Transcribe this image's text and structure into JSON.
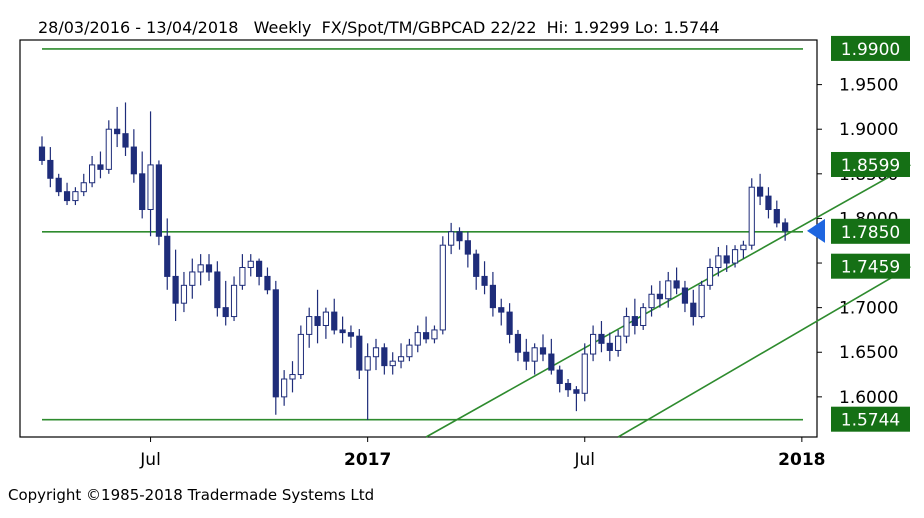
{
  "header": {
    "text": "28/03/2016 - 13/04/2018   Weekly  FX/Spot/TM/GBPCAD 22/22  Hi: 1.9299 Lo: 1.5744"
  },
  "copyright": "Copyright ©1985-2018 Tradermade Systems Ltd",
  "colors": {
    "candle": "#1f2d7a",
    "line": "#2e8b2e",
    "badge": "#157015",
    "marker": "#1e66e0",
    "frame": "#000000"
  },
  "chart_data": {
    "type": "candlestick",
    "symbol": "FX/Spot/TM/GBPCAD",
    "period": "Weekly",
    "date_range": [
      "28/03/2016",
      "13/04/2018"
    ],
    "high": 1.9299,
    "low": 1.5744,
    "ylim": [
      1.555,
      2.0
    ],
    "y_ticks": [
      "1.9500",
      "1.9000",
      "1.8500",
      "1.8000",
      "1.7500",
      "1.7000",
      "1.6500",
      "1.6000"
    ],
    "x_ticks": [
      {
        "label": "Jul",
        "week": 13,
        "bold": false
      },
      {
        "label": "2017",
        "week": 39,
        "bold": true
      },
      {
        "label": "Jul",
        "week": 65,
        "bold": false
      },
      {
        "label": "2018",
        "week": 91,
        "bold": true
      }
    ],
    "horizontal_levels": [
      {
        "label": "1.9900",
        "value": 1.99
      },
      {
        "label": "1.7850",
        "value": 1.785
      },
      {
        "label": "1.5744",
        "value": 1.5744
      }
    ],
    "channel_lines": [
      {
        "label": "1.8599",
        "start": {
          "week": 46,
          "value": 1.555
        },
        "end": {
          "week": 104,
          "value": 1.8599
        }
      },
      {
        "label": "1.7459",
        "start": {
          "week": 69,
          "value": 1.555
        },
        "end": {
          "week": 104,
          "value": 1.7459
        }
      }
    ],
    "last_price": 1.7861,
    "candles_ohlc": [
      [
        1.88,
        1.892,
        1.86,
        1.865
      ],
      [
        1.865,
        1.88,
        1.835,
        1.845
      ],
      [
        1.845,
        1.85,
        1.825,
        1.83
      ],
      [
        1.83,
        1.84,
        1.815,
        1.82
      ],
      [
        1.82,
        1.835,
        1.815,
        1.83
      ],
      [
        1.83,
        1.85,
        1.825,
        1.84
      ],
      [
        1.84,
        1.87,
        1.835,
        1.86
      ],
      [
        1.86,
        1.875,
        1.845,
        1.855
      ],
      [
        1.855,
        1.91,
        1.85,
        1.9
      ],
      [
        1.9,
        1.925,
        1.88,
        1.895
      ],
      [
        1.895,
        1.93,
        1.87,
        1.88
      ],
      [
        1.88,
        1.9,
        1.84,
        1.85
      ],
      [
        1.85,
        1.875,
        1.8,
        1.81
      ],
      [
        1.81,
        1.92,
        1.78,
        1.86
      ],
      [
        1.86,
        1.865,
        1.77,
        1.78
      ],
      [
        1.78,
        1.8,
        1.72,
        1.735
      ],
      [
        1.735,
        1.765,
        1.685,
        1.705
      ],
      [
        1.705,
        1.74,
        1.695,
        1.725
      ],
      [
        1.725,
        1.755,
        1.71,
        1.74
      ],
      [
        1.74,
        1.76,
        1.725,
        1.748
      ],
      [
        1.748,
        1.76,
        1.73,
        1.74
      ],
      [
        1.74,
        1.752,
        1.69,
        1.7
      ],
      [
        1.7,
        1.73,
        1.68,
        1.69
      ],
      [
        1.69,
        1.735,
        1.685,
        1.725
      ],
      [
        1.725,
        1.76,
        1.72,
        1.745
      ],
      [
        1.745,
        1.76,
        1.735,
        1.752
      ],
      [
        1.752,
        1.755,
        1.725,
        1.735
      ],
      [
        1.735,
        1.745,
        1.715,
        1.72
      ],
      [
        1.72,
        1.73,
        1.58,
        1.6
      ],
      [
        1.6,
        1.63,
        1.59,
        1.62
      ],
      [
        1.62,
        1.64,
        1.605,
        1.625
      ],
      [
        1.625,
        1.68,
        1.62,
        1.67
      ],
      [
        1.67,
        1.7,
        1.655,
        1.69
      ],
      [
        1.69,
        1.72,
        1.66,
        1.68
      ],
      [
        1.68,
        1.7,
        1.665,
        1.695
      ],
      [
        1.695,
        1.71,
        1.67,
        1.675
      ],
      [
        1.675,
        1.69,
        1.66,
        1.672
      ],
      [
        1.672,
        1.68,
        1.655,
        1.668
      ],
      [
        1.668,
        1.676,
        1.62,
        1.63
      ],
      [
        1.63,
        1.66,
        1.574,
        1.645
      ],
      [
        1.645,
        1.665,
        1.63,
        1.655
      ],
      [
        1.655,
        1.66,
        1.625,
        1.635
      ],
      [
        1.635,
        1.65,
        1.625,
        1.64
      ],
      [
        1.64,
        1.66,
        1.632,
        1.645
      ],
      [
        1.645,
        1.665,
        1.64,
        1.658
      ],
      [
        1.658,
        1.68,
        1.65,
        1.672
      ],
      [
        1.672,
        1.69,
        1.66,
        1.665
      ],
      [
        1.665,
        1.68,
        1.66,
        1.675
      ],
      [
        1.675,
        1.78,
        1.67,
        1.77
      ],
      [
        1.77,
        1.795,
        1.76,
        1.785
      ],
      [
        1.785,
        1.79,
        1.765,
        1.775
      ],
      [
        1.775,
        1.785,
        1.745,
        1.76
      ],
      [
        1.76,
        1.765,
        1.72,
        1.735
      ],
      [
        1.735,
        1.752,
        1.715,
        1.725
      ],
      [
        1.725,
        1.74,
        1.69,
        1.7
      ],
      [
        1.7,
        1.71,
        1.68,
        1.695
      ],
      [
        1.695,
        1.705,
        1.66,
        1.67
      ],
      [
        1.67,
        1.675,
        1.64,
        1.65
      ],
      [
        1.65,
        1.665,
        1.63,
        1.64
      ],
      [
        1.64,
        1.66,
        1.625,
        1.655
      ],
      [
        1.655,
        1.67,
        1.64,
        1.648
      ],
      [
        1.648,
        1.665,
        1.625,
        1.63
      ],
      [
        1.63,
        1.635,
        1.605,
        1.615
      ],
      [
        1.615,
        1.62,
        1.6,
        1.608
      ],
      [
        1.608,
        1.612,
        1.584,
        1.604
      ],
      [
        1.604,
        1.66,
        1.595,
        1.648
      ],
      [
        1.648,
        1.68,
        1.64,
        1.67
      ],
      [
        1.67,
        1.685,
        1.65,
        1.66
      ],
      [
        1.66,
        1.672,
        1.64,
        1.652
      ],
      [
        1.652,
        1.675,
        1.645,
        1.668
      ],
      [
        1.668,
        1.7,
        1.66,
        1.69
      ],
      [
        1.69,
        1.71,
        1.67,
        1.68
      ],
      [
        1.68,
        1.705,
        1.675,
        1.7
      ],
      [
        1.7,
        1.725,
        1.69,
        1.715
      ],
      [
        1.715,
        1.73,
        1.7,
        1.71
      ],
      [
        1.71,
        1.74,
        1.7,
        1.73
      ],
      [
        1.73,
        1.745,
        1.715,
        1.722
      ],
      [
        1.722,
        1.73,
        1.695,
        1.705
      ],
      [
        1.705,
        1.72,
        1.68,
        1.69
      ],
      [
        1.69,
        1.73,
        1.688,
        1.725
      ],
      [
        1.725,
        1.755,
        1.72,
        1.745
      ],
      [
        1.745,
        1.768,
        1.735,
        1.758
      ],
      [
        1.758,
        1.77,
        1.74,
        1.75
      ],
      [
        1.75,
        1.77,
        1.745,
        1.765
      ],
      [
        1.765,
        1.775,
        1.755,
        1.77
      ],
      [
        1.77,
        1.845,
        1.765,
        1.835
      ],
      [
        1.835,
        1.85,
        1.815,
        1.825
      ],
      [
        1.825,
        1.835,
        1.8,
        1.81
      ],
      [
        1.81,
        1.82,
        1.79,
        1.795
      ],
      [
        1.795,
        1.8,
        1.775,
        1.786
      ]
    ]
  }
}
